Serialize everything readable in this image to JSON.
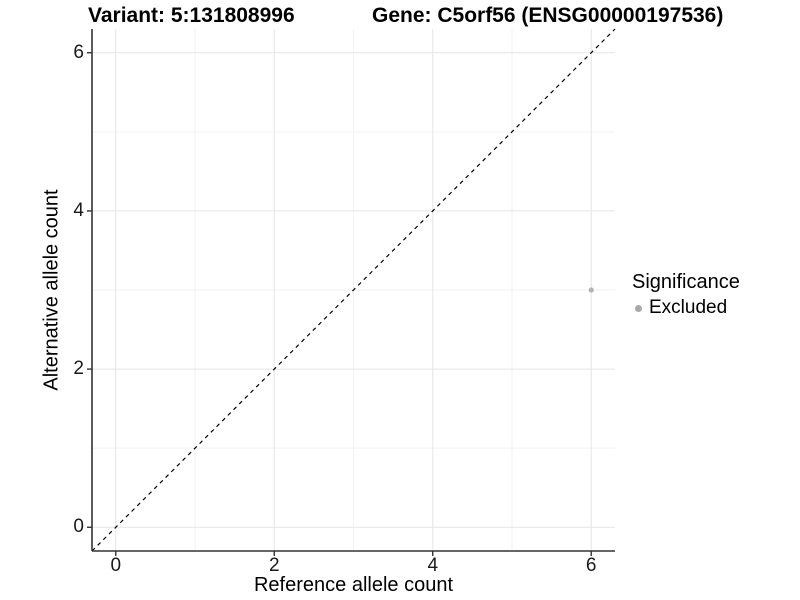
{
  "header": {
    "variant_title": "Variant: 5:131808996",
    "gene_title": "Gene: C5orf56 (ENSG00000197536)"
  },
  "chart_data": {
    "type": "scatter",
    "xlabel": "Reference allele count",
    "ylabel": "Alternative allele count",
    "xlim": [
      -0.3,
      6.3
    ],
    "ylim": [
      -0.3,
      6.3
    ],
    "x_ticks": [
      0,
      2,
      4,
      6
    ],
    "y_ticks": [
      0,
      2,
      4,
      6
    ],
    "minor_grid_x": [
      1,
      3,
      5
    ],
    "minor_grid_y": [
      1,
      3,
      5
    ],
    "grid": true,
    "points": [
      {
        "x": 6,
        "y": 3,
        "series": "Excluded",
        "color": "#b3b3b3",
        "radius": 2.6
      }
    ],
    "reference_line": {
      "slope": 1,
      "intercept": 0,
      "style": "dashed",
      "color": "#000000"
    },
    "legend": {
      "title": "Significance",
      "position": "right",
      "entries": [
        {
          "label": "Excluded",
          "color": "#a8a8a8"
        }
      ]
    }
  },
  "style": {
    "axis_color": "#333333",
    "major_grid_color": "#e5e5e5",
    "minor_grid_color": "#f2f2f2"
  }
}
